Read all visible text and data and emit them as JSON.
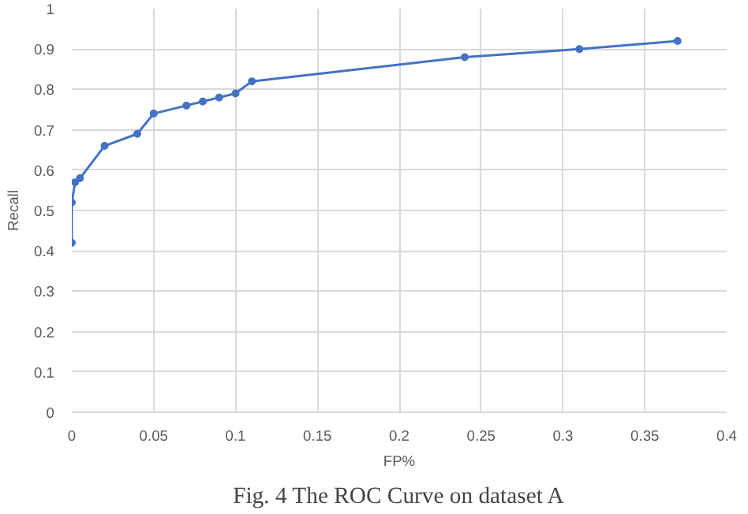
{
  "chart_data": {
    "type": "line",
    "xlabel": "FP%",
    "ylabel": "Recall",
    "annotations": [
      "Fig. 4 The ROC Curve on dataset A"
    ],
    "series": [
      {
        "color": "#4472c4",
        "x": [
          0,
          0,
          0.002,
          0.005,
          0.02,
          0.04,
          0.05,
          0.07,
          0.08,
          0.09,
          0.1,
          0.11,
          0.24,
          0.31,
          0.37
        ],
        "values": [
          0.42,
          0.52,
          0.57,
          0.58,
          0.66,
          0.69,
          0.74,
          0.76,
          0.77,
          0.78,
          0.79,
          0.82,
          0.88,
          0.9,
          0.92
        ]
      }
    ],
    "xlim": [
      0,
      0.4
    ],
    "xticks": [
      0,
      0.05,
      0.1,
      0.15,
      0.2,
      0.25,
      0.3,
      0.35,
      0.4
    ],
    "ylim": [
      0,
      1
    ],
    "yticks": [
      0,
      0.1,
      0.2,
      0.3,
      0.4,
      0.5,
      0.6,
      0.7,
      0.8,
      0.9,
      1
    ],
    "grid": true,
    "marker": "circle",
    "line_style": "solid"
  }
}
